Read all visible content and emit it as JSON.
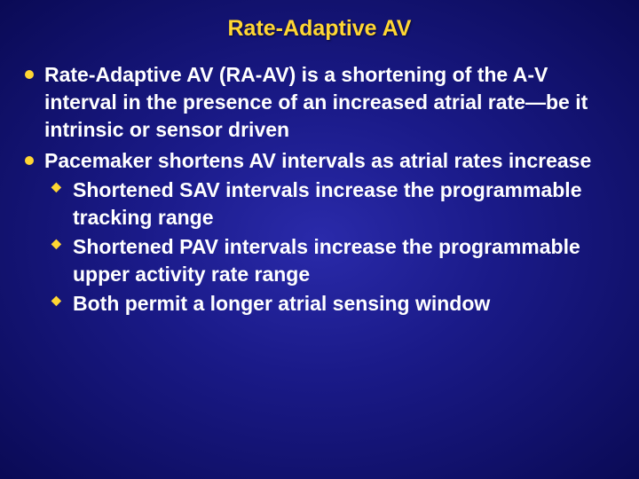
{
  "slide": {
    "title": "Rate-Adaptive AV",
    "background_gradient": {
      "center": "#2a2aaa",
      "mid": "#1a1a88",
      "edge": "#0a0a55"
    },
    "title_color": "#ffd633",
    "body_color": "#ffffff",
    "bullet_color": "#ffd633",
    "title_fontsize": 25,
    "body_fontsize": 23,
    "font_weight": "bold",
    "font_family": "Arial",
    "bullets": [
      {
        "text": "Rate-Adaptive AV (RA-AV) is a shortening of the A-V interval in the presence of an increased atrial rate—be it intrinsic or sensor driven"
      },
      {
        "text": "Pacemaker shortens AV intervals as atrial rates increase",
        "sub": [
          "Shortened SAV intervals increase the programmable tracking range",
          "Shortened PAV intervals increase the programmable upper activity rate range",
          "Both permit a longer atrial sensing window"
        ]
      }
    ]
  }
}
